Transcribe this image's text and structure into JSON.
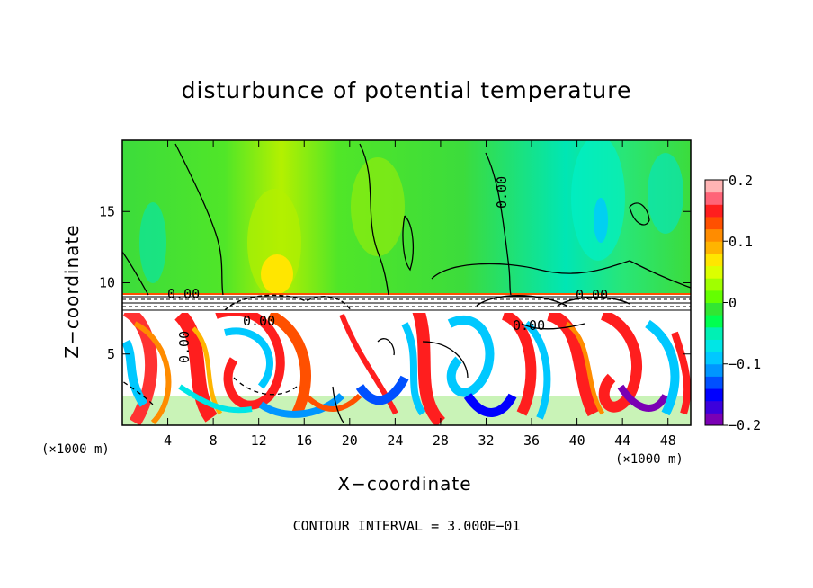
{
  "chart_data": {
    "type": "heatmap",
    "title": "disturbunce of potential temperature",
    "xlabel": "X−coordinate",
    "ylabel": "Z−coordinate",
    "x_unit": "(×1000 m)",
    "z_unit": "(×1000 m)",
    "xlim": [
      0,
      50
    ],
    "ylim": [
      0,
      20
    ],
    "x_ticks": [
      "4",
      "8",
      "12",
      "16",
      "20",
      "24",
      "28",
      "32",
      "36",
      "40",
      "44",
      "48"
    ],
    "y_ticks": [
      "5",
      "10",
      "15"
    ],
    "contour_interval_text": "CONTOUR INTERVAL = 3.000E−01",
    "contour_labels": [
      "0.00",
      "0.00",
      "0.00",
      "0.00",
      "0.00",
      "0.00"
    ],
    "colorbar": {
      "range": [
        -0.2,
        0.2
      ],
      "tick_labels": [
        "0.2",
        "0.1",
        "0",
        "−0.1",
        "−0.2"
      ],
      "colors": [
        "#7a00b4",
        "#3c00dc",
        "#0000ff",
        "#0050ff",
        "#0096ff",
        "#00c8ff",
        "#00e6e6",
        "#00f0b4",
        "#00ff50",
        "#32e632",
        "#64ff00",
        "#a0ff00",
        "#dcff00",
        "#ffe600",
        "#ffb400",
        "#ff8c00",
        "#ff5000",
        "#ff1e1e",
        "#ff6478",
        "#ffb4b4"
      ]
    },
    "grid": false
  }
}
